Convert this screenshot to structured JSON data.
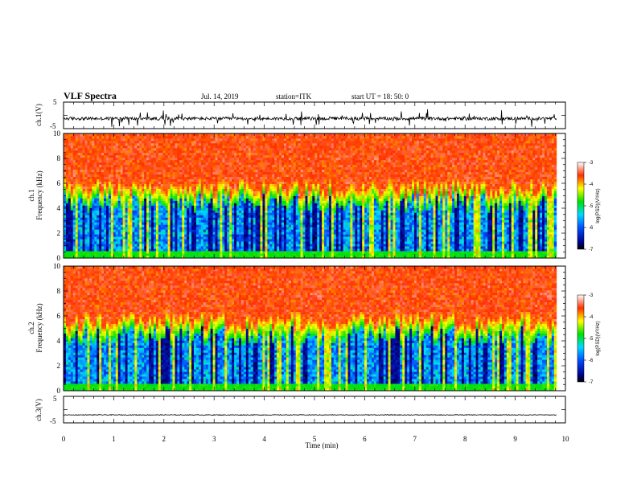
{
  "header": {
    "title": "VLF Spectra",
    "date": "Jul. 14, 2019",
    "station": "station=ITK",
    "start": "start UT = 18: 50: 0"
  },
  "chart_data": [
    {
      "type": "line",
      "panel": "ch1-waveform",
      "ylabel": "ch.1(V)",
      "ylim": [
        -5,
        5
      ],
      "yticks": [
        "5",
        "-5"
      ],
      "xlim": [
        0,
        10
      ],
      "baseline": -1.2
    },
    {
      "type": "heatmap",
      "panel": "ch1-spectrogram",
      "ylabel": "ch.1 Frequency (kHz)",
      "ylabel_lines": [
        "ch.1",
        "Frequency (kHz)"
      ],
      "ylim": [
        0,
        10
      ],
      "yticks": [
        "0",
        "2",
        "4",
        "6",
        "8",
        "10"
      ],
      "xlim": [
        0,
        10
      ],
      "colorbar": {
        "label": "log(PSD)(V²/Hz)",
        "range": [
          -7,
          -3
        ],
        "ticks": [
          "-3",
          "-4",
          "-5",
          "-6",
          "-7"
        ]
      }
    },
    {
      "type": "heatmap",
      "panel": "ch2-spectrogram",
      "ylabel": "ch.2 Frequency (kHz)",
      "ylabel_lines": [
        "ch.2",
        "Frequency (kHz)"
      ],
      "ylim": [
        0,
        10
      ],
      "yticks": [
        "0",
        "2",
        "4",
        "6",
        "8",
        "10"
      ],
      "xlim": [
        0,
        10
      ],
      "colorbar": {
        "label": "log(PSD)(V²/Hz)",
        "range": [
          -7,
          -3
        ],
        "ticks": [
          "-3",
          "-4",
          "-5",
          "-6",
          "-7"
        ]
      }
    },
    {
      "type": "line",
      "panel": "ch3-waveform",
      "ylabel": "ch.3(V)",
      "ylim": [
        -5,
        5
      ],
      "yticks": [
        "5",
        "-5"
      ],
      "xlim": [
        0,
        10
      ],
      "baseline": -2.0,
      "xlabel": "Time (min)",
      "xticks": [
        "0",
        "1",
        "2",
        "3",
        "4",
        "5",
        "6",
        "7",
        "8",
        "9",
        "10"
      ]
    }
  ]
}
